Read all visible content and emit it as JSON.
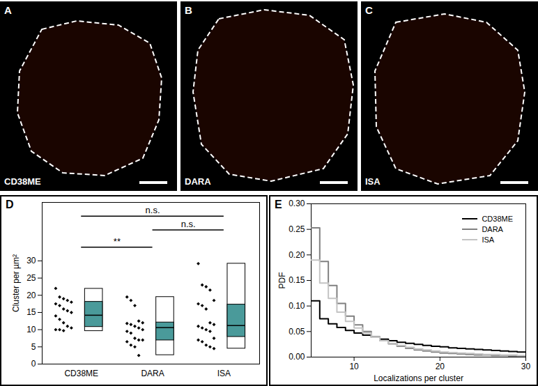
{
  "chart_data": [
    {
      "type": "image",
      "panel": "A",
      "label": "CD38ME"
    },
    {
      "type": "image",
      "panel": "B",
      "label": "DARA"
    },
    {
      "type": "image",
      "panel": "C",
      "label": "ISA"
    },
    {
      "type": "box",
      "panel": "D",
      "ylabel": "Cluster per µm²",
      "categories": [
        "CD38ME",
        "DARA",
        "ISA"
      ],
      "points": [
        [
          22,
          19.5,
          19,
          18.5,
          18,
          17.5,
          17,
          16,
          15.5,
          15,
          14,
          13,
          12,
          11,
          10.5,
          10,
          10,
          9.7
        ],
        [
          19.5,
          18.5,
          17,
          12.5,
          12,
          11.8,
          11.5,
          11,
          10.5,
          10,
          9.5,
          9,
          7.5,
          7,
          7,
          6.5,
          5.5,
          5,
          2.5
        ],
        [
          29.2,
          23,
          22.5,
          21.5,
          18.5,
          17.5,
          17,
          16,
          12,
          11.5,
          11,
          10.5,
          10,
          9.5,
          7.5,
          7,
          6.5,
          5.5,
          5,
          4.5
        ]
      ],
      "marker": "diamond",
      "box": [
        {
          "min": 9.6,
          "q1": 10.8,
          "median": 14.2,
          "q3": 18.1,
          "max": 21.9
        },
        {
          "min": 2.6,
          "q1": 6.9,
          "median": 10.6,
          "q3": 12.1,
          "max": 19.5
        },
        {
          "min": 4.5,
          "q1": 7.9,
          "median": 11.2,
          "q3": 17.3,
          "max": 29.2
        }
      ],
      "color": "#4a9a9a",
      "annotations": [
        {
          "from": "CD38ME",
          "to": "ISA",
          "y": 43,
          "label": "n.s."
        },
        {
          "from": "DARA",
          "to": "ISA",
          "y": 39,
          "label": "n.s."
        },
        {
          "from": "CD38ME",
          "to": "DARA",
          "y": 34,
          "label": "**"
        }
      ],
      "ylim": [
        0,
        47
      ],
      "yticks": [
        0,
        5,
        10,
        15,
        20,
        25,
        30
      ],
      "grid": false
    },
    {
      "type": "histogram",
      "panel": "E",
      "xlabel": "Localizations per cluster",
      "ylabel": "PDF",
      "bins": [
        5,
        6,
        7,
        8,
        9,
        10,
        11,
        12,
        13,
        14,
        15,
        16,
        17,
        18,
        19,
        20,
        21,
        22,
        23,
        24,
        25,
        26,
        27,
        28,
        29,
        30
      ],
      "line_style": "step",
      "series": [
        {
          "name": "CD38ME",
          "color": "#000000",
          "values": [
            0.11,
            0.075,
            0.065,
            0.058,
            0.052,
            0.047,
            0.043,
            0.039,
            0.035,
            0.032,
            0.029,
            0.027,
            0.025,
            0.023,
            0.021,
            0.02,
            0.018,
            0.017,
            0.016,
            0.015,
            0.014,
            0.013,
            0.012,
            0.011,
            0.01
          ]
        },
        {
          "name": "DARA",
          "color": "#808080",
          "values": [
            0.253,
            0.187,
            0.14,
            0.105,
            0.08,
            0.063,
            0.05,
            0.04,
            0.032,
            0.026,
            0.021,
            0.017,
            0.014,
            0.012,
            0.01,
            0.008,
            0.007,
            0.006,
            0.005,
            0.004,
            0.004,
            0.003,
            0.003,
            0.002,
            0.002
          ]
        },
        {
          "name": "ISA",
          "color": "#c4c4c4",
          "values": [
            0.19,
            0.145,
            0.115,
            0.088,
            0.07,
            0.057,
            0.047,
            0.039,
            0.032,
            0.027,
            0.023,
            0.019,
            0.016,
            0.014,
            0.012,
            0.01,
            0.009,
            0.008,
            0.007,
            0.006,
            0.005,
            0.005,
            0.004,
            0.004,
            0.003
          ]
        }
      ],
      "xlim": [
        5,
        30
      ],
      "xticks": [
        10,
        20,
        30
      ],
      "ylim": [
        0,
        0.3
      ],
      "yticks": [
        {
          "value": 0,
          "label": "0.00"
        },
        {
          "value": 0.05,
          "label": "0.05"
        },
        {
          "value": 0.1,
          "label": "0.10"
        },
        {
          "value": 0.15,
          "label": "0.15"
        },
        {
          "value": 0.2,
          "label": "0.20"
        },
        {
          "value": 0.25,
          "label": "0.25"
        },
        {
          "value": 0.3,
          "label": "0.30"
        }
      ],
      "legend": "top-right",
      "grid": false
    }
  ]
}
